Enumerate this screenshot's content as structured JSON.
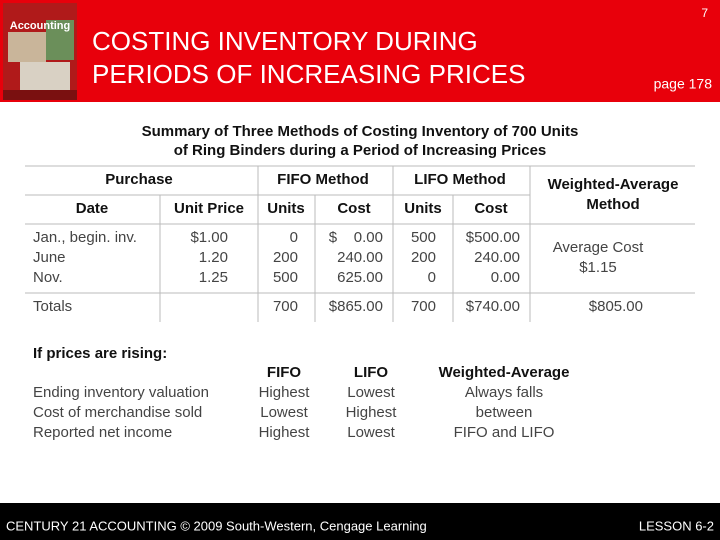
{
  "header": {
    "page_number": "7",
    "cover_text": "Accounting",
    "title": [
      "COSTING INVENTORY DURING",
      "PERIODS OF INCREASING PRICES"
    ],
    "page_ref": "page 178"
  },
  "table": {
    "title": [
      "Summary of Three Methods of Costing Inventory of 700 Units",
      "of Ring Binders during a Period of Increasing Prices"
    ],
    "group_headers": {
      "purchase": "Purchase",
      "fifo": "FIFO Method",
      "lifo": "LIFO Method",
      "weighted_average": [
        "Weighted-Average",
        "Method"
      ]
    },
    "column_headers": [
      "Date",
      "Unit Price",
      "Units",
      "Cost",
      "Units",
      "Cost"
    ],
    "rows": [
      [
        "Jan., begin. inv.",
        "$1.00",
        "0",
        "$    0.00",
        "500",
        "$500.00"
      ],
      [
        "June",
        "1.20",
        "200",
        "240.00",
        "200",
        "240.00"
      ],
      [
        "Nov.",
        "1.25",
        "500",
        "625.00",
        "0",
        "0.00"
      ]
    ],
    "weighted_average": [
      "Average Cost",
      "$1.15"
    ],
    "totals": {
      "label": "Totals",
      "fifo_units": "700",
      "fifo_cost": "$865.00",
      "lifo_units": "700",
      "lifo_cost": "$740.00",
      "weighted_average": "$805.00"
    }
  },
  "rising": {
    "heading": "If prices are rising:",
    "columns": [
      "FIFO",
      "LIFO",
      "Weighted-Average"
    ],
    "rows": [
      {
        "label": "Ending inventory valuation",
        "fifo": "Highest",
        "lifo": "Lowest"
      },
      {
        "label": "Cost of merchandise sold",
        "fifo": "Lowest",
        "lifo": "Highest"
      },
      {
        "label": "Reported net income",
        "fifo": "Highest",
        "lifo": "Lowest"
      }
    ],
    "weighted_average": [
      "Always falls",
      "between",
      "FIFO and LIFO"
    ]
  },
  "footer": {
    "left": "CENTURY 21 ACCOUNTING © 2009 South-Western, Cengage Learning",
    "right": "LESSON 6-2"
  }
}
